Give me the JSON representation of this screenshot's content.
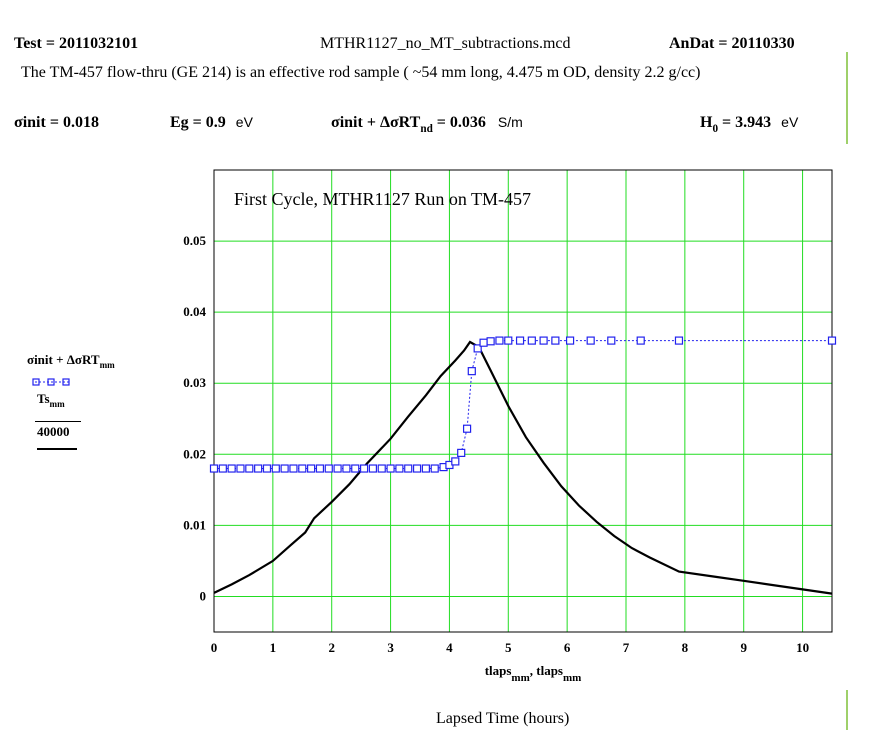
{
  "header": {
    "test_label": "Test = 2011032101",
    "filename": "MTHR1127_no_MT_subtractions.mcd",
    "andat_label": "AnDat = 20110330",
    "description": "The TM-457 flow-thru (GE 214)  is an effective rod sample ( ~54 mm long, 4.475 m OD, density 2.2 g/cc)"
  },
  "params": {
    "sigma_init": {
      "label": "σinit = ",
      "value": "0.018"
    },
    "eg": {
      "label": "Eg = ",
      "value": "0.9",
      "unit": "eV"
    },
    "sigma_sum": {
      "label": "σinit + ΔσRT",
      "sub": "nd",
      "eq": " = ",
      "value": "0.036",
      "unit": "S/m"
    },
    "h0": {
      "label": "H",
      "sub": "0",
      "eq": " = ",
      "value": "3.943",
      "unit": "eV"
    }
  },
  "legend": {
    "series1_main": "σinit + ΔσRT",
    "series1_sub": "mm",
    "series2_main": "Ts",
    "series2_sub": "mm",
    "series2_den": "40000"
  },
  "chart_data": {
    "type": "line",
    "title": "First Cycle, MTHR1127  Run on TM-457",
    "xlabel_main": "tlaps",
    "xlabel_sub": "mm",
    "xlabel_sep": ", ",
    "xlabel_main2": "tlaps",
    "xlabel_sub2": "mm",
    "below_caption": "Lapsed Time (hours)",
    "xlim": [
      0,
      10.5
    ],
    "ylim": [
      -0.005,
      0.06
    ],
    "x_ticks": [
      "0",
      "1",
      "2",
      "3",
      "4",
      "5",
      "6",
      "7",
      "8",
      "9",
      "10"
    ],
    "y_ticks": [
      "0",
      "0.01",
      "0.02",
      "0.03",
      "0.04",
      "0.05"
    ],
    "grid": true,
    "grid_color": "#22dd22",
    "series": [
      {
        "color": "#2222ee",
        "marker": "square",
        "style": "dotted",
        "x": [
          0,
          0.15,
          0.3,
          0.45,
          0.6,
          0.75,
          0.9,
          1.05,
          1.2,
          1.35,
          1.5,
          1.65,
          1.8,
          1.95,
          2.1,
          2.25,
          2.4,
          2.55,
          2.7,
          2.85,
          3.0,
          3.15,
          3.3,
          3.45,
          3.6,
          3.75,
          3.9,
          4.0,
          4.1,
          4.2,
          4.3,
          4.38,
          4.48,
          4.58,
          4.7,
          4.85,
          5.0,
          5.2,
          5.4,
          5.6,
          5.8,
          6.05,
          6.4,
          6.75,
          7.25,
          7.9,
          10.5
        ],
        "y": [
          0.018,
          0.018,
          0.018,
          0.018,
          0.018,
          0.018,
          0.018,
          0.018,
          0.018,
          0.018,
          0.018,
          0.018,
          0.018,
          0.018,
          0.018,
          0.018,
          0.018,
          0.018,
          0.018,
          0.018,
          0.018,
          0.018,
          0.018,
          0.018,
          0.018,
          0.018,
          0.0182,
          0.0185,
          0.019,
          0.0202,
          0.0236,
          0.0317,
          0.0349,
          0.0357,
          0.0359,
          0.036,
          0.036,
          0.036,
          0.036,
          0.036,
          0.036,
          0.036,
          0.036,
          0.036,
          0.036,
          0.036,
          0.036
        ]
      },
      {
        "color": "#000000",
        "marker": "none",
        "style": "solid",
        "x": [
          0,
          0.3,
          0.6,
          1.0,
          1.3,
          1.55,
          1.7,
          2.0,
          2.3,
          2.6,
          3.0,
          3.3,
          3.6,
          3.85,
          4.1,
          4.25,
          4.35,
          4.5,
          4.7,
          5.0,
          5.3,
          5.6,
          5.9,
          6.2,
          6.5,
          6.8,
          7.1,
          7.4,
          7.9,
          8.5,
          9.0,
          9.5,
          10.0,
          10.5
        ],
        "y": [
          0.0005,
          0.0017,
          0.003,
          0.005,
          0.0072,
          0.009,
          0.011,
          0.0133,
          0.0158,
          0.0187,
          0.0222,
          0.0253,
          0.0283,
          0.031,
          0.0332,
          0.0346,
          0.0358,
          0.0351,
          0.0318,
          0.0268,
          0.0224,
          0.0188,
          0.0155,
          0.0128,
          0.0105,
          0.0085,
          0.0068,
          0.0055,
          0.0035,
          0.0028,
          0.0022,
          0.0016,
          0.001,
          0.0004
        ]
      }
    ]
  }
}
